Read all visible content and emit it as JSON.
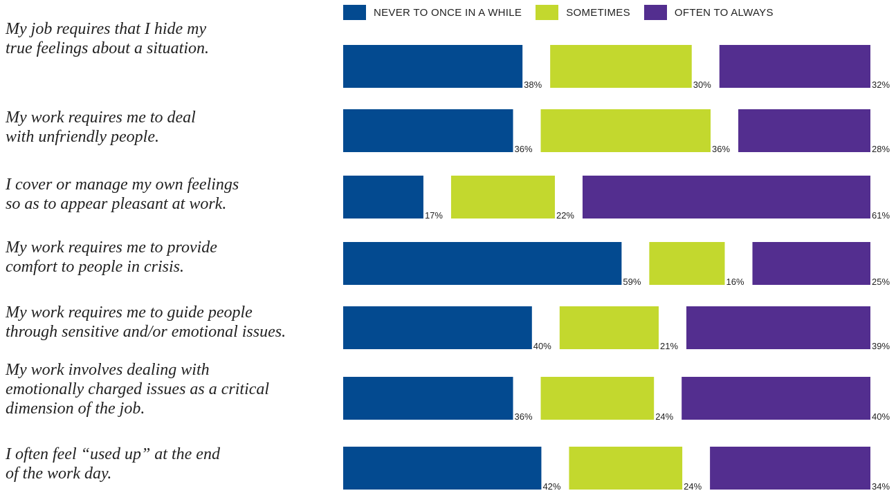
{
  "chart_data": {
    "type": "bar",
    "stacked": true,
    "orientation": "horizontal",
    "legend_position": "top",
    "series": [
      {
        "name": "NEVER TO ONCE IN A WHILE",
        "color": "#034a90",
        "values": [
          38,
          36,
          17,
          59,
          40,
          36,
          42
        ]
      },
      {
        "name": "SOMETIMES",
        "color": "#c3d82e",
        "values": [
          30,
          36,
          22,
          16,
          21,
          24,
          24
        ]
      },
      {
        "name": "OFTEN TO ALWAYS",
        "color": "#532e8f",
        "values": [
          32,
          28,
          61,
          25,
          39,
          40,
          34
        ]
      }
    ],
    "categories": [
      "My job requires that I hide my\ntrue feelings about a situation.",
      "My work requires me to deal\nwith unfriendly people.",
      "I cover or manage my own feelings\nso as to appear pleasant at work.",
      "My work requires me to provide\ncomfort to people in crisis.",
      "My work requires me to guide people\nthrough sensitive and/or emotional issues.",
      "My work involves dealing with\nemotionally charged issues as a critical\ndimension of the job.",
      "I often feel “used up” at the end\nof the work day."
    ],
    "value_suffix": "%"
  }
}
